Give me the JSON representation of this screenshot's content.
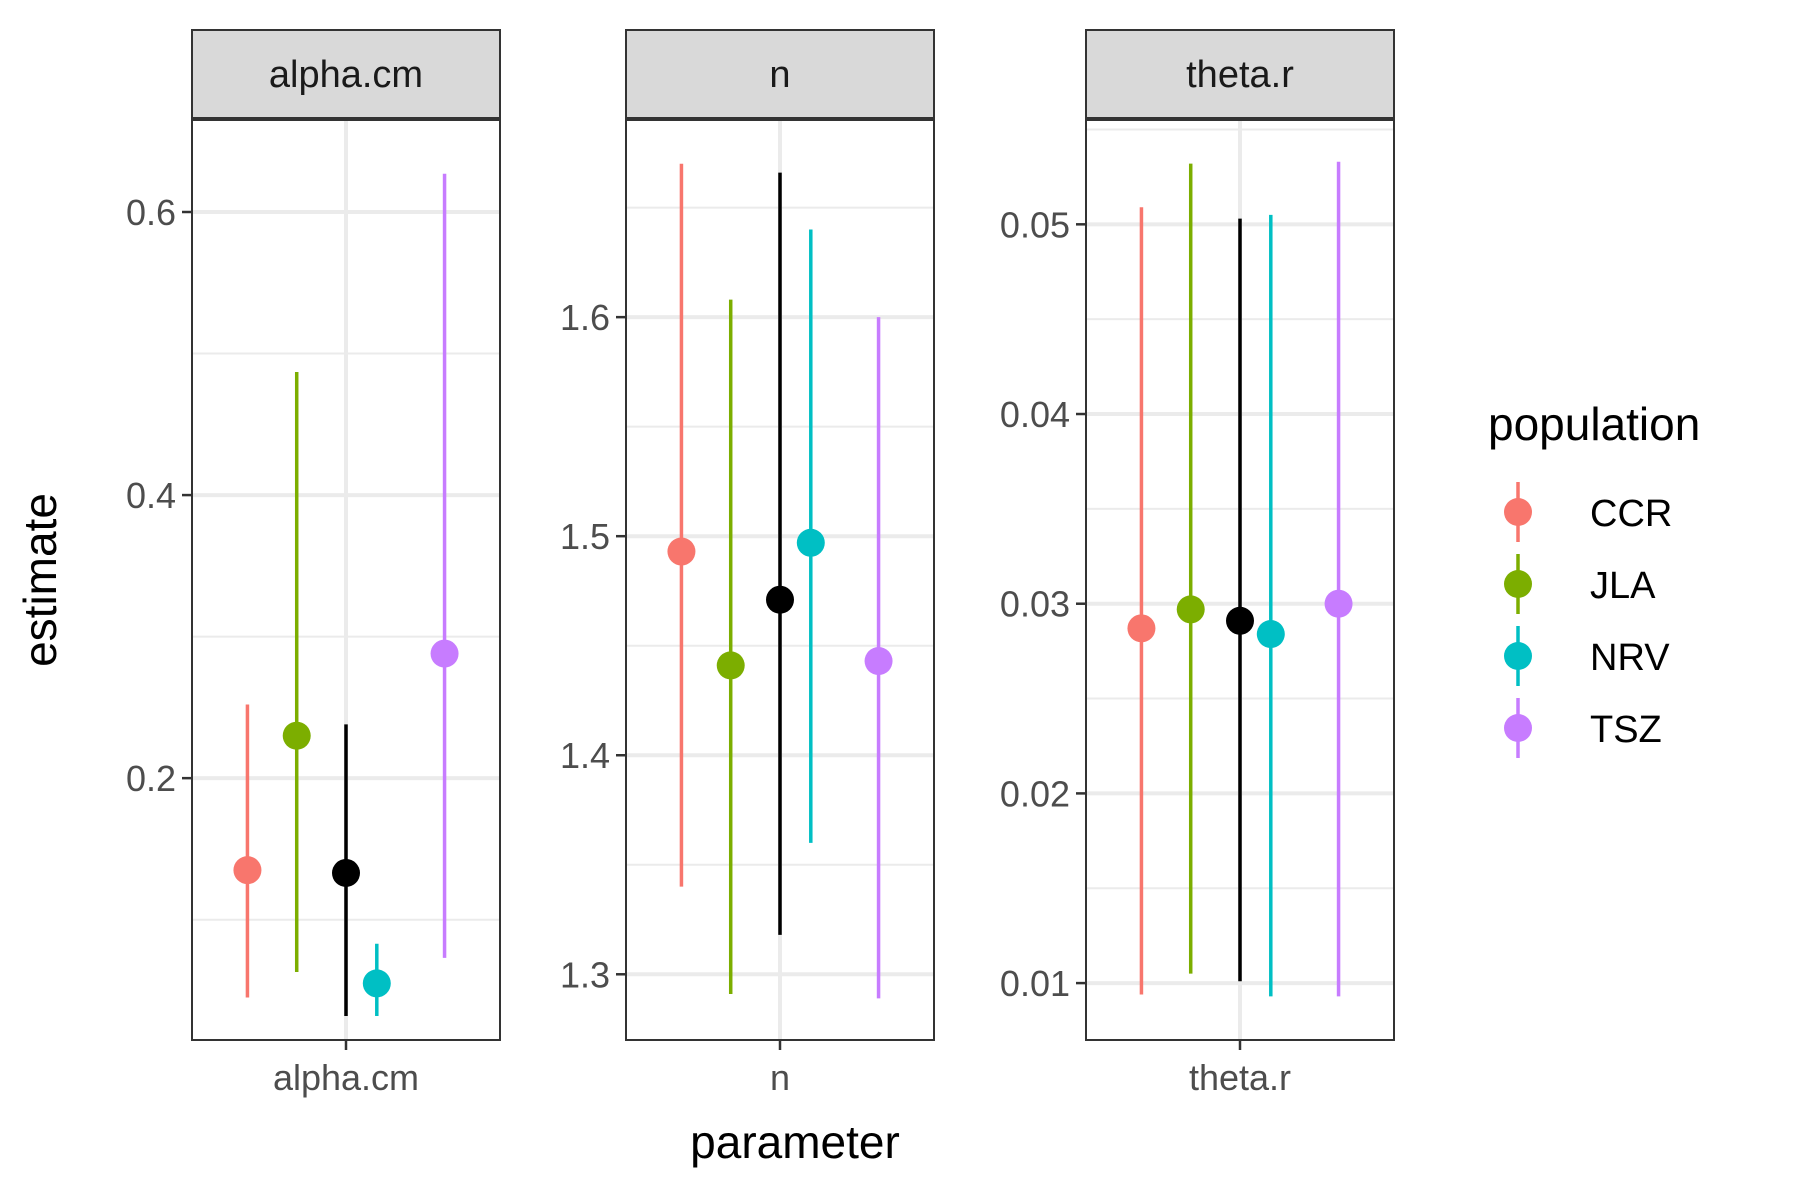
{
  "chart_data": {
    "type": "scatter",
    "style": "faceted pointrange (point estimate with interval)",
    "ylabel": "estimate",
    "xlabel": "parameter",
    "grid": true,
    "legend": {
      "title": "population",
      "placement": "right",
      "entries": [
        {
          "name": "CCR",
          "color": "#F8766D"
        },
        {
          "name": "JLA",
          "color": "#7CAE00"
        },
        {
          "name": "NRV",
          "color": "#00BFC4"
        },
        {
          "name": "TSZ",
          "color": "#C77CFF"
        }
      ]
    },
    "overall_color": "#000000",
    "panels": [
      {
        "strip": "alpha.cm",
        "x_tick": "alpha.cm",
        "ylim": [
          0.015,
          0.665
        ],
        "y_ticks": [
          0.2,
          0.4,
          0.6
        ],
        "y_tick_labels": [
          "0.2",
          "0.4",
          "0.6"
        ],
        "y_minor": [
          0.1,
          0.3,
          0.5
        ],
        "series": [
          {
            "name": "CCR",
            "estimate": 0.135,
            "lower": 0.045,
            "upper": 0.252
          },
          {
            "name": "JLA",
            "estimate": 0.23,
            "lower": 0.063,
            "upper": 0.487
          },
          {
            "name": "",
            "estimate": 0.133,
            "lower": 0.032,
            "upper": 0.238
          },
          {
            "name": "NRV",
            "estimate": 0.055,
            "lower": 0.032,
            "upper": 0.083
          },
          {
            "name": "TSZ",
            "estimate": 0.288,
            "lower": 0.073,
            "upper": 0.627
          }
        ]
      },
      {
        "strip": "n",
        "x_tick": "n",
        "ylim": [
          1.27,
          1.69
        ],
        "y_ticks": [
          1.3,
          1.4,
          1.5,
          1.6
        ],
        "y_tick_labels": [
          "1.3",
          "1.4",
          "1.5",
          "1.6"
        ],
        "y_minor": [
          1.35,
          1.45,
          1.55,
          1.65
        ],
        "series": [
          {
            "name": "CCR",
            "estimate": 1.493,
            "lower": 1.34,
            "upper": 1.67
          },
          {
            "name": "JLA",
            "estimate": 1.441,
            "lower": 1.291,
            "upper": 1.608
          },
          {
            "name": "",
            "estimate": 1.471,
            "lower": 1.318,
            "upper": 1.666
          },
          {
            "name": "NRV",
            "estimate": 1.497,
            "lower": 1.36,
            "upper": 1.64
          },
          {
            "name": "TSZ",
            "estimate": 1.443,
            "lower": 1.289,
            "upper": 1.6
          }
        ]
      },
      {
        "strip": "theta.r",
        "x_tick": "theta.r",
        "ylim": [
          0.007,
          0.0555
        ],
        "y_ticks": [
          0.01,
          0.02,
          0.03,
          0.04,
          0.05
        ],
        "y_tick_labels": [
          "0.01",
          "0.02",
          "0.03",
          "0.04",
          "0.05"
        ],
        "y_minor": [
          0.015,
          0.025,
          0.035,
          0.045,
          0.055
        ],
        "series": [
          {
            "name": "CCR",
            "estimate": 0.0287,
            "lower": 0.0094,
            "upper": 0.0509
          },
          {
            "name": "JLA",
            "estimate": 0.0297,
            "lower": 0.0105,
            "upper": 0.0532
          },
          {
            "name": "",
            "estimate": 0.0291,
            "lower": 0.0101,
            "upper": 0.0503
          },
          {
            "name": "NRV",
            "estimate": 0.0284,
            "lower": 0.0093,
            "upper": 0.0505
          },
          {
            "name": "TSZ",
            "estimate": 0.03,
            "lower": 0.0093,
            "upper": 0.0533
          }
        ]
      }
    ]
  }
}
